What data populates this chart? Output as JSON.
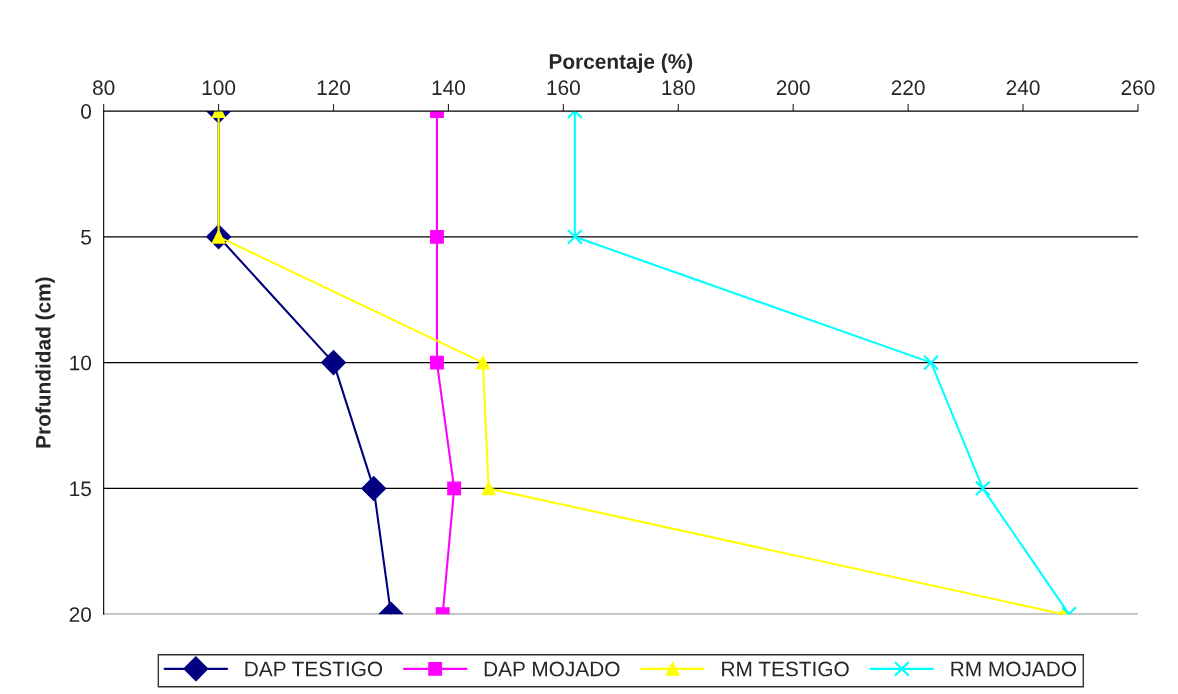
{
  "chart_data": {
    "type": "line",
    "orientation": "horizontal",
    "xlabel": "Porcentaje (%)",
    "ylabel": "Profundidad (cm)",
    "x": [
      0,
      5,
      10,
      15,
      20
    ],
    "series": [
      {
        "name": "DAP TESTIGO",
        "color": "#000080",
        "marker": "diamond",
        "values": [
          100,
          100,
          120,
          127,
          130
        ]
      },
      {
        "name": "DAP MOJADO",
        "color": "#ff00ff",
        "marker": "square",
        "values": [
          138,
          138,
          138,
          141,
          139
        ]
      },
      {
        "name": "RM TESTIGO",
        "color": "#ffff00",
        "marker": "triangle",
        "values": [
          100,
          100,
          146,
          147,
          247
        ]
      },
      {
        "name": "RM MOJADO",
        "color": "#00ffff",
        "marker": "cross",
        "values": [
          162,
          162,
          224,
          233,
          248
        ]
      }
    ],
    "xlim": [
      80,
      260
    ],
    "xticks": [
      80,
      100,
      120,
      140,
      160,
      180,
      200,
      220,
      240,
      260
    ],
    "ylim": [
      20,
      0
    ],
    "yticks": [
      0,
      5,
      10,
      15,
      20
    ],
    "grid": "y",
    "legend": "bottom"
  }
}
